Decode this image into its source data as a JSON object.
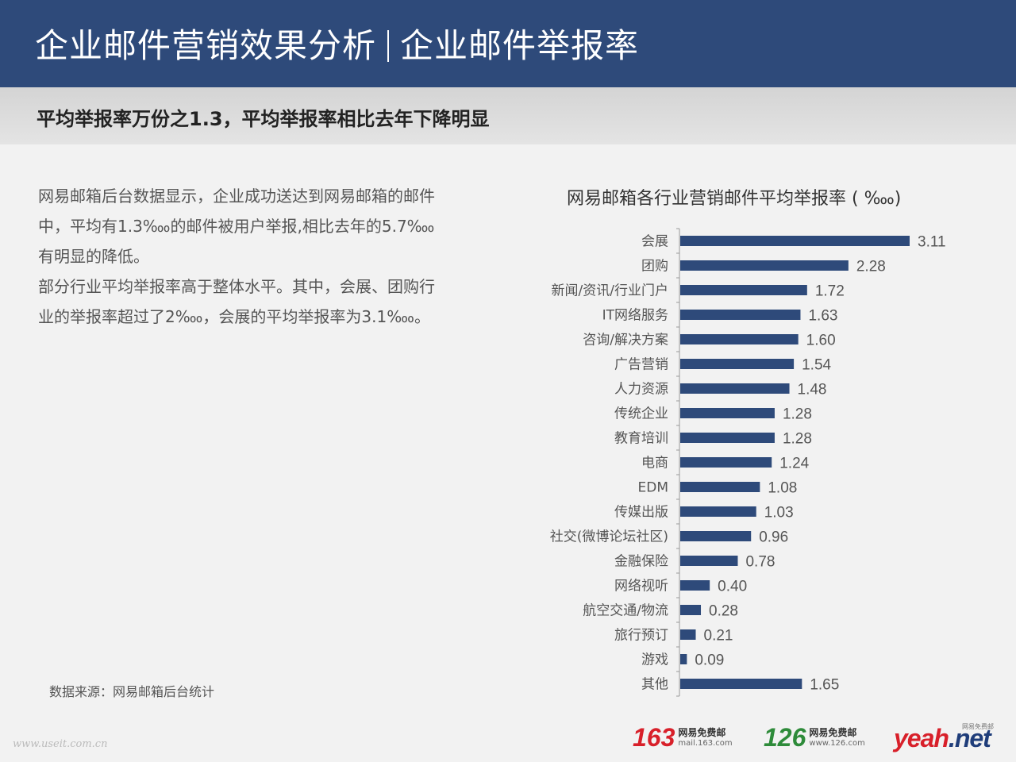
{
  "header": {
    "title_main": "企业邮件营销效果分析",
    "title_sub": "企业邮件举报率"
  },
  "subheader": {
    "text": "平均举报率万份之1.3，平均举报率相比去年下降明显"
  },
  "body": {
    "paragraph1": "网易邮箱后台数据显示，企业成功送达到网易邮箱的邮件中，平均有1.3‱的邮件被用户举报,相比去年的5.7‱有明显的降低。",
    "paragraph2": "部分行业平均举报率高于整体水平。其中，会展、团购行业的举报率超过了2‱，会展的平均举报率为3.1‱。"
  },
  "source": "数据来源：网易邮箱后台统计",
  "watermark": "www.useit.com.cn",
  "chart_data": {
    "type": "bar",
    "orientation": "horizontal",
    "title": "网易邮箱各行业营销邮件平均举报率 ( ‱)",
    "categories": [
      "会展",
      "团购",
      "新闻/资讯/行业门户",
      "IT网络服务",
      "咨询/解决方案",
      "广告营销",
      "人力资源",
      "传统企业",
      "教育培训",
      "电商",
      "EDM",
      "传媒出版",
      "社交(微博论坛社区)",
      "金融保险",
      "网络视听",
      "航空交通/物流",
      "旅行预订",
      "游戏",
      "其他"
    ],
    "values": [
      3.11,
      2.28,
      1.72,
      1.63,
      1.6,
      1.54,
      1.48,
      1.28,
      1.28,
      1.24,
      1.08,
      1.03,
      0.96,
      0.78,
      0.4,
      0.28,
      0.21,
      0.09,
      1.65
    ],
    "value_labels": [
      "3.11",
      "2.28",
      "1.72",
      "1.63",
      "1.60",
      "1.54",
      "1.48",
      "1.28",
      "1.28",
      "1.24",
      "1.08",
      "1.03",
      "0.96",
      "0.78",
      "0.40",
      "0.28",
      "0.21",
      "0.09",
      "1.65"
    ],
    "xlim": [
      0,
      3.11
    ],
    "grid": false,
    "bar_color": "#2e4a7a"
  },
  "logos": {
    "l163": {
      "number": "163",
      "name": "网易免费邮",
      "url": "mail.163.com",
      "color": "#d8202a"
    },
    "l126": {
      "number": "126",
      "name": "网易免费邮",
      "url": "www.126.com",
      "color": "#2e8b3a"
    },
    "yeah": {
      "tag": "网易免费邮",
      "word": "yeah",
      "suffix": ".net"
    }
  }
}
